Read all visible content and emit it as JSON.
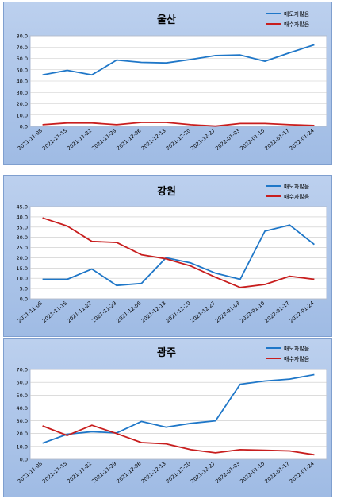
{
  "chart_data": [
    {
      "type": "line",
      "title": "울산",
      "categories": [
        "2021-11-08",
        "2021-11-15",
        "2021-11-22",
        "2021-11-29",
        "2021-12-06",
        "2021-12-13",
        "2021-12-20",
        "2021-12-27",
        "2022-01-03",
        "2022-01-10",
        "2022-01-17",
        "2022-01-24"
      ],
      "series": [
        {
          "name": "매도자많음",
          "color": "#1f77c8",
          "values": [
            45.5,
            49.5,
            45.5,
            58.5,
            56.5,
            56.0,
            59.0,
            62.5,
            63.0,
            57.5,
            65.0,
            72.0
          ]
        },
        {
          "name": "매수자많음",
          "color": "#c81e1e",
          "values": [
            1.5,
            3.0,
            3.0,
            1.5,
            3.5,
            3.5,
            1.5,
            0.2,
            2.5,
            2.5,
            1.5,
            0.8
          ]
        }
      ],
      "ylim": [
        0,
        80
      ],
      "ystep": 10,
      "ydecimals": 1,
      "legend": "top-right",
      "grid": true
    },
    {
      "type": "line",
      "title": "강원",
      "categories": [
        "2021-11-08",
        "2021-11-15",
        "2021-11-22",
        "2021-11-29",
        "2021-12-06",
        "2021-12-13",
        "2021-12-20",
        "2021-12-27",
        "2022-01-03",
        "2022-01-10",
        "2022-01-17",
        "2022-01-24"
      ],
      "series": [
        {
          "name": "매도자많음",
          "color": "#1f77c8",
          "values": [
            9.5,
            9.5,
            14.5,
            6.5,
            7.5,
            20.0,
            17.5,
            12.5,
            9.5,
            33.0,
            36.0,
            26.5
          ]
        },
        {
          "name": "매수자많음",
          "color": "#c81e1e",
          "values": [
            39.5,
            35.5,
            28.0,
            27.5,
            21.5,
            19.5,
            16.0,
            10.5,
            5.5,
            7.0,
            11.0,
            9.5
          ]
        }
      ],
      "ylim": [
        0,
        45
      ],
      "ystep": 5,
      "ydecimals": 1,
      "legend": "top-right",
      "grid": true
    },
    {
      "type": "line",
      "title": "광주",
      "categories": [
        "2021-11-08",
        "2021-11-15",
        "2021-11-22",
        "2021-11-29",
        "2021-12-06",
        "2021-12-13",
        "2021-12-20",
        "2021-12-27",
        "2022-01-03",
        "2022-01-10",
        "2022-01-17",
        "2022-01-24"
      ],
      "series": [
        {
          "name": "매도자많음",
          "color": "#1f77c8",
          "values": [
            12.5,
            19.5,
            21.5,
            20.5,
            29.5,
            25.0,
            28.0,
            30.0,
            58.5,
            61.0,
            62.5,
            66.0
          ]
        },
        {
          "name": "매수자많음",
          "color": "#c81e1e",
          "values": [
            26.0,
            18.5,
            26.5,
            20.0,
            13.0,
            12.0,
            7.5,
            5.0,
            7.5,
            7.0,
            6.5,
            3.5
          ]
        }
      ],
      "ylim": [
        0,
        70
      ],
      "ystep": 10,
      "ydecimals": 1,
      "legend": "top-right",
      "grid": true
    }
  ]
}
